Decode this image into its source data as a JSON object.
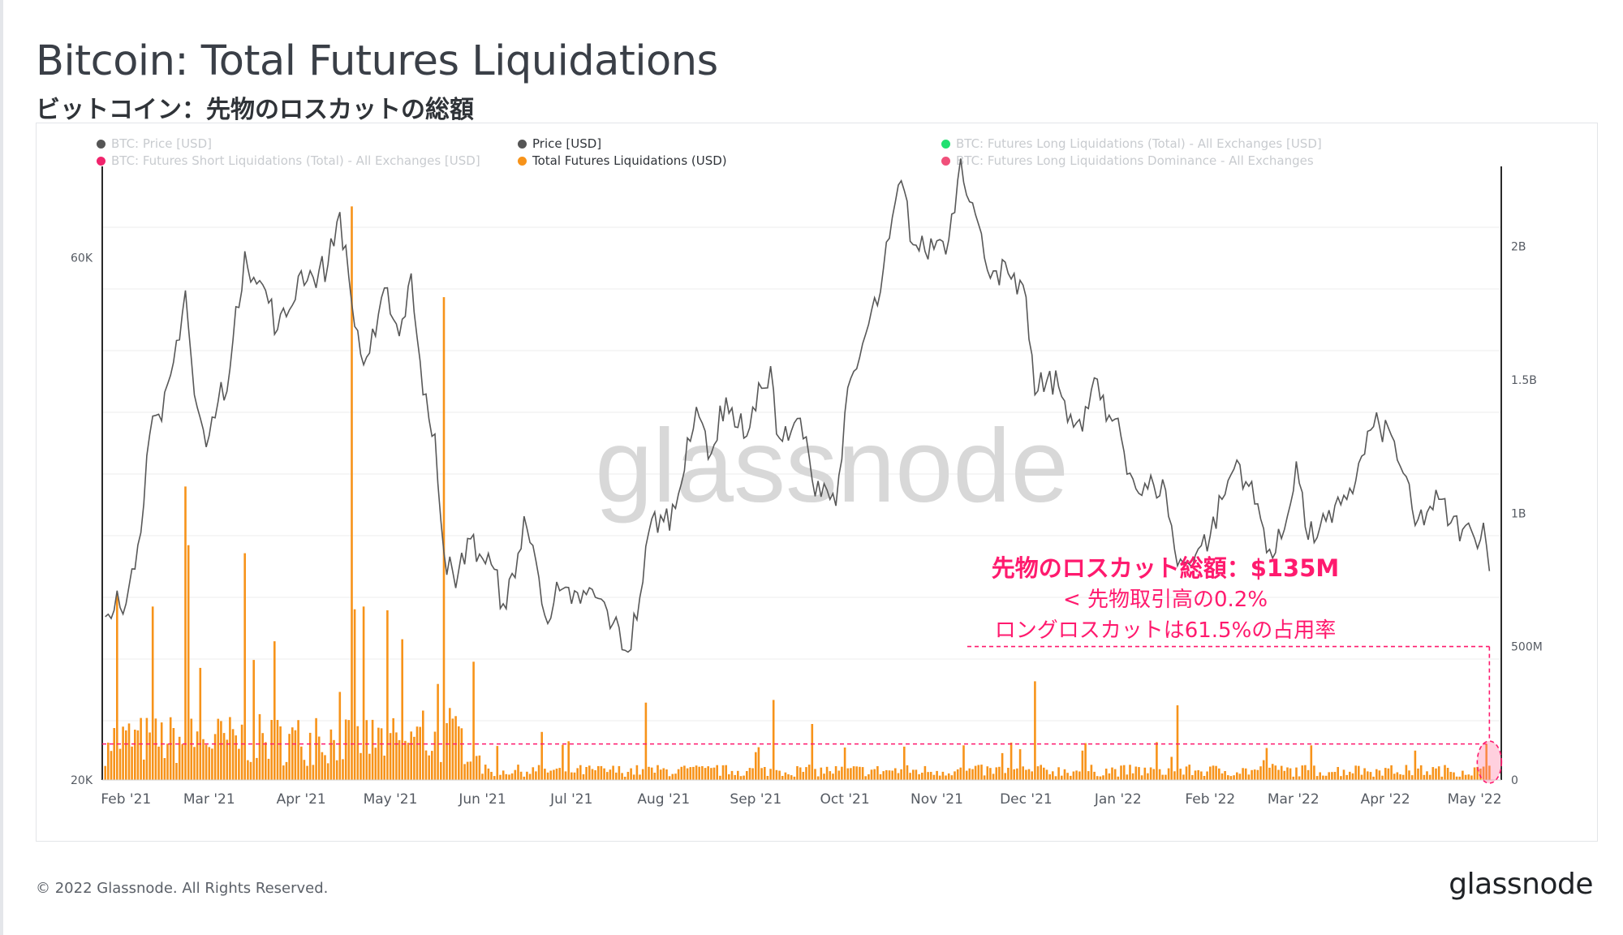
{
  "title": "Bitcoin: Total Futures Liquidations",
  "subtitle": "ビットコイン：先物のロスカットの総額",
  "legend": [
    {
      "label": "BTC: Price [USD]",
      "color": "#555555",
      "active": false
    },
    {
      "label": "Price [USD]",
      "color": "#555555",
      "active": true
    },
    {
      "label": "BTC: Futures Long Liquidations (Total) - All Exchanges [USD]",
      "color": "#20e070",
      "active": false
    },
    {
      "label": "BTC: Futures Short Liquidations (Total) - All Exchanges [USD]",
      "color": "#f0246c",
      "active": false
    },
    {
      "label": "Total Futures Liquidations (USD)",
      "color": "#f7931a",
      "active": true
    },
    {
      "label": "BTC: Futures Long Liquidations Dominance - All Exchanges",
      "color": "#f0507a",
      "active": false
    }
  ],
  "annotation": {
    "line1": "先物のロスカット総額：$135M",
    "line2": "< 先物取引高の0.2%",
    "line3": "ロングロスカットは61.5%の占用率",
    "color": "#ff1a6e"
  },
  "watermark": "glassnode",
  "footer": "© 2022 Glassnode. All Rights Reserved.",
  "brand": "glassnode",
  "chart_data": {
    "type": "line",
    "x_tick_labels": [
      "Feb '21",
      "Mar '21",
      "Apr '21",
      "May '21",
      "Jun '21",
      "Jul '21",
      "Aug '21",
      "Sep '21",
      "Oct '21",
      "Nov '21",
      "Dec '21",
      "Jan '22",
      "Feb '22",
      "Mar '22",
      "Apr '22",
      "May '22"
    ],
    "y_left_ticks": [
      "20K",
      "60K"
    ],
    "y_right_ticks": [
      "0",
      "500M",
      "1B",
      "1.5B",
      "2B"
    ],
    "y_left_range": [
      20000,
      67000
    ],
    "y_right_range": [
      0,
      2300000000
    ],
    "reference_level": 135000000,
    "price_series": {
      "name": "Price [USD]",
      "color": "#555555",
      "points": [
        [
          "2021-01-25",
          32500
        ],
        [
          "2021-01-29",
          34500
        ],
        [
          "2021-02-01",
          33500
        ],
        [
          "2021-02-05",
          38000
        ],
        [
          "2021-02-09",
          46500
        ],
        [
          "2021-02-13",
          47500
        ],
        [
          "2021-02-17",
          52000
        ],
        [
          "2021-02-21",
          57500
        ],
        [
          "2021-02-24",
          49500
        ],
        [
          "2021-02-28",
          45500
        ],
        [
          "2021-03-04",
          49000
        ],
        [
          "2021-03-08",
          51500
        ],
        [
          "2021-03-13",
          60500
        ],
        [
          "2021-03-17",
          58000
        ],
        [
          "2021-03-20",
          57500
        ],
        [
          "2021-03-24",
          54500
        ],
        [
          "2021-03-28",
          56000
        ],
        [
          "2021-04-01",
          59000
        ],
        [
          "2021-04-05",
          58500
        ],
        [
          "2021-04-10",
          59500
        ],
        [
          "2021-04-14",
          63500
        ],
        [
          "2021-04-18",
          56500
        ],
        [
          "2021-04-22",
          51800
        ],
        [
          "2021-04-26",
          54000
        ],
        [
          "2021-04-30",
          57700
        ],
        [
          "2021-05-04",
          54000
        ],
        [
          "2021-05-08",
          58800
        ],
        [
          "2021-05-12",
          49500
        ],
        [
          "2021-05-16",
          46500
        ],
        [
          "2021-05-19",
          37500
        ],
        [
          "2021-05-23",
          34700
        ],
        [
          "2021-05-27",
          38500
        ],
        [
          "2021-05-31",
          37300
        ],
        [
          "2021-06-04",
          36500
        ],
        [
          "2021-06-08",
          33500
        ],
        [
          "2021-06-12",
          35500
        ],
        [
          "2021-06-15",
          40200
        ],
        [
          "2021-06-20",
          35500
        ],
        [
          "2021-06-22",
          32600
        ],
        [
          "2021-06-27",
          34500
        ],
        [
          "2021-07-01",
          33500
        ],
        [
          "2021-07-06",
          34200
        ],
        [
          "2021-07-10",
          33900
        ],
        [
          "2021-07-15",
          32000
        ],
        [
          "2021-07-20",
          29800
        ],
        [
          "2021-07-24",
          34000
        ],
        [
          "2021-07-28",
          40000
        ],
        [
          "2021-08-01",
          39800
        ],
        [
          "2021-08-05",
          40800
        ],
        [
          "2021-08-09",
          46200
        ],
        [
          "2021-08-13",
          47800
        ],
        [
          "2021-08-17",
          45000
        ],
        [
          "2021-08-22",
          49300
        ],
        [
          "2021-08-26",
          47000
        ],
        [
          "2021-08-30",
          47000
        ],
        [
          "2021-09-03",
          50000
        ],
        [
          "2021-09-06",
          51700
        ],
        [
          "2021-09-08",
          46500
        ],
        [
          "2021-09-12",
          46000
        ],
        [
          "2021-09-16",
          47700
        ],
        [
          "2021-09-20",
          43000
        ],
        [
          "2021-09-24",
          42700
        ],
        [
          "2021-09-28",
          41000
        ],
        [
          "2021-10-01",
          48100
        ],
        [
          "2021-10-05",
          51500
        ],
        [
          "2021-10-09",
          54900
        ],
        [
          "2021-10-13",
          57400
        ],
        [
          "2021-10-16",
          61500
        ],
        [
          "2021-10-20",
          65900
        ],
        [
          "2021-10-24",
          61000
        ],
        [
          "2021-10-28",
          60500
        ],
        [
          "2021-11-01",
          61300
        ],
        [
          "2021-11-05",
          61400
        ],
        [
          "2021-11-09",
          67600
        ],
        [
          "2021-11-13",
          64200
        ],
        [
          "2021-11-17",
          60000
        ],
        [
          "2021-11-21",
          59000
        ],
        [
          "2021-11-25",
          58800
        ],
        [
          "2021-11-28",
          57200
        ],
        [
          "2021-12-01",
          57000
        ],
        [
          "2021-12-04",
          49500
        ],
        [
          "2021-12-08",
          50600
        ],
        [
          "2021-12-12",
          50100
        ],
        [
          "2021-12-16",
          48000
        ],
        [
          "2021-12-20",
          46700
        ],
        [
          "2021-12-24",
          50800
        ],
        [
          "2021-12-28",
          47500
        ],
        [
          "2022-01-01",
          47700
        ],
        [
          "2022-01-05",
          43500
        ],
        [
          "2022-01-09",
          41800
        ],
        [
          "2022-01-13",
          42600
        ],
        [
          "2022-01-17",
          42200
        ],
        [
          "2022-01-21",
          36400
        ],
        [
          "2022-01-24",
          36700
        ],
        [
          "2022-01-28",
          37700
        ],
        [
          "2022-02-01",
          38700
        ],
        [
          "2022-02-05",
          41500
        ],
        [
          "2022-02-10",
          44500
        ],
        [
          "2022-02-14",
          42500
        ],
        [
          "2022-02-18",
          40000
        ],
        [
          "2022-02-22",
          37000
        ],
        [
          "2022-02-26",
          39200
        ],
        [
          "2022-03-02",
          44400
        ],
        [
          "2022-03-06",
          38400
        ],
        [
          "2022-03-10",
          39400
        ],
        [
          "2022-03-14",
          39700
        ],
        [
          "2022-03-18",
          41800
        ],
        [
          "2022-03-22",
          42900
        ],
        [
          "2022-03-27",
          46800
        ],
        [
          "2022-03-30",
          47100
        ],
        [
          "2022-04-03",
          46400
        ],
        [
          "2022-04-07",
          43500
        ],
        [
          "2022-04-11",
          39500
        ],
        [
          "2022-04-15",
          40500
        ],
        [
          "2022-04-19",
          41500
        ],
        [
          "2022-04-23",
          39700
        ],
        [
          "2022-04-27",
          39200
        ],
        [
          "2022-05-01",
          38500
        ],
        [
          "2022-05-04",
          39700
        ],
        [
          "2022-05-06",
          36000
        ]
      ]
    },
    "liquidation_series": {
      "name": "Total Futures Liquidations (USD)",
      "color": "#f7931a",
      "spikes": [
        [
          "2021-01-26",
          140000000
        ],
        [
          "2021-01-29",
          700000000
        ],
        [
          "2021-02-10",
          650000000
        ],
        [
          "2021-02-21",
          1100000000
        ],
        [
          "2021-02-22",
          880000000
        ],
        [
          "2021-02-26",
          420000000
        ],
        [
          "2021-03-13",
          850000000
        ],
        [
          "2021-03-16",
          450000000
        ],
        [
          "2021-03-23",
          520000000
        ],
        [
          "2021-04-14",
          330000000
        ],
        [
          "2021-04-18",
          2150000000
        ],
        [
          "2021-04-22",
          650000000
        ],
        [
          "2021-05-12",
          260000000
        ],
        [
          "2021-05-17",
          360000000
        ],
        [
          "2021-05-19",
          1810000000
        ],
        [
          "2021-05-21",
          270000000
        ],
        [
          "2021-06-21",
          180000000
        ],
        [
          "2021-07-26",
          290000000
        ],
        [
          "2021-09-07",
          300000000
        ],
        [
          "2021-09-20",
          210000000
        ],
        [
          "2021-10-21",
          125000000
        ],
        [
          "2021-11-10",
          130000000
        ],
        [
          "2021-11-26",
          140000000
        ],
        [
          "2021-12-04",
          370000000
        ],
        [
          "2021-12-20",
          110000000
        ],
        [
          "2022-01-21",
          280000000
        ],
        [
          "2022-02-20",
          120000000
        ],
        [
          "2022-03-07",
          130000000
        ],
        [
          "2022-04-11",
          110000000
        ],
        [
          "2022-05-05",
          135000000
        ]
      ],
      "baseline": 50000000
    }
  }
}
